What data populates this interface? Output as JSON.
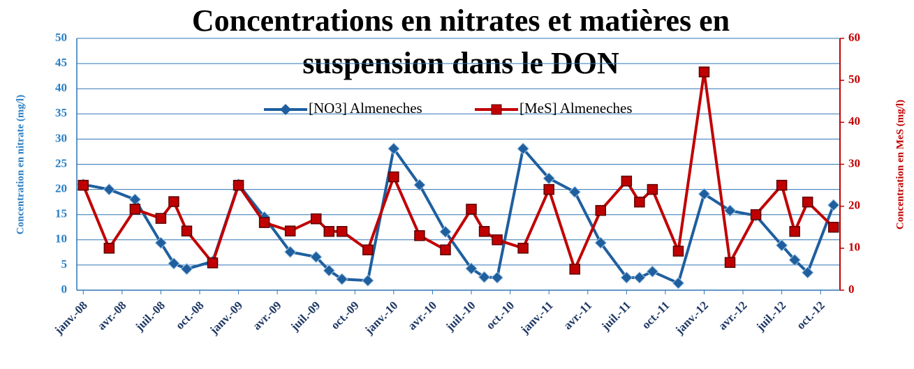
{
  "chart_data": {
    "type": "line",
    "title": [
      "Concentrations en nitrates et matières en",
      "suspension dans le DON"
    ],
    "ylabel": "Concentration en nitrate (mg/l)",
    "y2label": "Concentration en MeS (mg/l)",
    "x": [
      0,
      2,
      4,
      6,
      7,
      8,
      10,
      12,
      14,
      16,
      18,
      19,
      20,
      22,
      24,
      26,
      28,
      30,
      31,
      32,
      34,
      36,
      38,
      40,
      42,
      43,
      44,
      46,
      48,
      50,
      52,
      54,
      55,
      56,
      58
    ],
    "xlim": [
      -0.5,
      58.5
    ],
    "xticks": [
      {
        "value": 0,
        "label": "janv.-08"
      },
      {
        "value": 3,
        "label": "avr.-08"
      },
      {
        "value": 6,
        "label": "juil.-08"
      },
      {
        "value": 9,
        "label": "oct.-08"
      },
      {
        "value": 12,
        "label": "janv.-09"
      },
      {
        "value": 15,
        "label": "avr.-09"
      },
      {
        "value": 18,
        "label": "juil.-09"
      },
      {
        "value": 21,
        "label": "oct.-09"
      },
      {
        "value": 24,
        "label": "janv.-10"
      },
      {
        "value": 27,
        "label": "avr.-10"
      },
      {
        "value": 30,
        "label": "juil.-10"
      },
      {
        "value": 33,
        "label": "oct.-10"
      },
      {
        "value": 36,
        "label": "janv.-11"
      },
      {
        "value": 39,
        "label": "avr.-11"
      },
      {
        "value": 42,
        "label": "juil.-11"
      },
      {
        "value": 45,
        "label": "oct.-11"
      },
      {
        "value": 48,
        "label": "janv.-12"
      },
      {
        "value": 51,
        "label": "avr.-12"
      },
      {
        "value": 54,
        "label": "juil.-12"
      },
      {
        "value": 57,
        "label": "oct.-12"
      }
    ],
    "ylim": [
      0,
      50
    ],
    "yticks": [
      0,
      5,
      10,
      15,
      20,
      25,
      30,
      35,
      40,
      45,
      50
    ],
    "y2lim": [
      0,
      60
    ],
    "y2ticks": [
      0,
      10,
      20,
      30,
      40,
      50,
      60
    ],
    "grid": true,
    "legend": "top",
    "series": [
      {
        "name": "[NO3] Almeneches",
        "color": "#1f5f9e",
        "marker": "diamond",
        "values": [
          21,
          20,
          18,
          9.4,
          5.3,
          4.2,
          5.7,
          21,
          14.5,
          7.6,
          6.6,
          3.9,
          2.2,
          1.9,
          28.1,
          20.9,
          11.6,
          4.3,
          2.6,
          2.5,
          28.1,
          22.2,
          19.5,
          9.4,
          2.5,
          2.5,
          3.7,
          1.4,
          19.1,
          15.8,
          14.8,
          8.9,
          6,
          3.5,
          16.9
        ]
      },
      {
        "name": "[MeS] Almeneches",
        "color": "#c00000",
        "marker": "square",
        "axis": "y2",
        "values": [
          25,
          10,
          19.3,
          17.1,
          21.1,
          14.1,
          6.5,
          25,
          16.1,
          14.1,
          17,
          14,
          14,
          9.6,
          27,
          13,
          9.6,
          19.3,
          14,
          12,
          10,
          24,
          5,
          19,
          26,
          21,
          24,
          9.3,
          52,
          6.6,
          18,
          25,
          14,
          21,
          15
        ]
      }
    ]
  }
}
